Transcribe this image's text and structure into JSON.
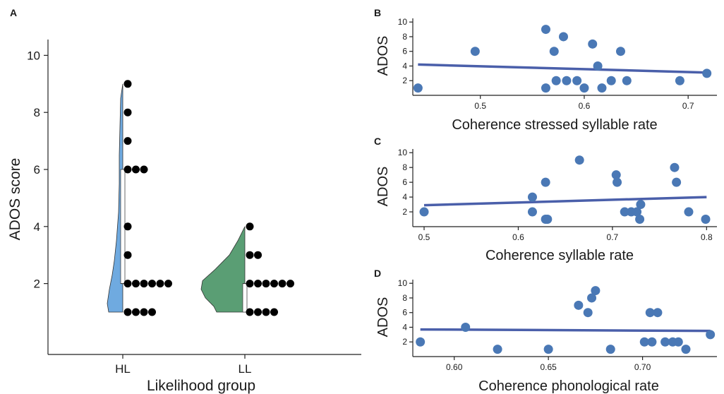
{
  "chart_data": [
    {
      "panel": "A",
      "type": "raincloud",
      "xlabel": "Likelihood group",
      "ylabel": "ADOS score",
      "categories": [
        "HL",
        "LL"
      ],
      "yticks": [
        2,
        4,
        6,
        8,
        10
      ],
      "ylim": [
        -0.5,
        10.5
      ],
      "groups": [
        {
          "name": "HL",
          "color": "#6faae0",
          "min": 1,
          "q1": 2,
          "median": 2,
          "q3": 6,
          "max": 9,
          "values": [
            9,
            8,
            7,
            6,
            6,
            6,
            4,
            3,
            2,
            2,
            2,
            2,
            2,
            2,
            1,
            1,
            1,
            1
          ]
        },
        {
          "name": "LL",
          "color": "#5a9e74",
          "min": 1,
          "q1": 1,
          "median": 2,
          "q3": 2,
          "max": 4,
          "values": [
            4,
            3,
            3,
            2,
            2,
            2,
            2,
            2,
            2,
            1,
            1,
            1,
            1
          ]
        }
      ]
    },
    {
      "panel": "B",
      "type": "scatter",
      "xlabel": "Coherence stressed syllable rate",
      "ylabel": "ADOS",
      "xlim": [
        0.435,
        0.725
      ],
      "ylim": [
        0,
        10.5
      ],
      "xticks": [
        "0.5",
        "0.6",
        "0.7"
      ],
      "yticks": [
        2,
        4,
        6,
        8,
        10
      ],
      "fit": {
        "x": [
          0.44,
          0.72
        ],
        "y": [
          4.2,
          3.1
        ]
      },
      "points": [
        [
          0.44,
          1
        ],
        [
          0.495,
          6
        ],
        [
          0.563,
          9
        ],
        [
          0.563,
          1
        ],
        [
          0.571,
          6
        ],
        [
          0.573,
          2
        ],
        [
          0.58,
          8
        ],
        [
          0.583,
          2
        ],
        [
          0.593,
          2
        ],
        [
          0.6,
          1
        ],
        [
          0.608,
          7
        ],
        [
          0.613,
          4
        ],
        [
          0.617,
          1
        ],
        [
          0.626,
          2
        ],
        [
          0.635,
          6
        ],
        [
          0.641,
          2
        ],
        [
          0.692,
          2
        ],
        [
          0.718,
          3
        ]
      ]
    },
    {
      "panel": "C",
      "type": "scatter",
      "xlabel": "Coherence syllable rate",
      "ylabel": "ADOS",
      "xlim": [
        0.488,
        0.808
      ],
      "ylim": [
        0,
        10.5
      ],
      "xticks": [
        "0.5",
        "0.6",
        "0.7",
        "0.8"
      ],
      "yticks": [
        2,
        4,
        6,
        8,
        10
      ],
      "fit": {
        "x": [
          0.5,
          0.8
        ],
        "y": [
          2.9,
          4.0
        ]
      },
      "points": [
        [
          0.5,
          2
        ],
        [
          0.615,
          4
        ],
        [
          0.615,
          2
        ],
        [
          0.629,
          6
        ],
        [
          0.629,
          1
        ],
        [
          0.631,
          1
        ],
        [
          0.665,
          9
        ],
        [
          0.704,
          7
        ],
        [
          0.705,
          6
        ],
        [
          0.713,
          2
        ],
        [
          0.72,
          2
        ],
        [
          0.726,
          2
        ],
        [
          0.729,
          1
        ],
        [
          0.73,
          3
        ],
        [
          0.766,
          8
        ],
        [
          0.768,
          6
        ],
        [
          0.781,
          2
        ],
        [
          0.799,
          1
        ]
      ]
    },
    {
      "panel": "D",
      "type": "scatter",
      "xlabel": "Coherence phonological rate",
      "ylabel": "ADOS",
      "xlim": [
        0.578,
        0.738
      ],
      "ylim": [
        0,
        10.5
      ],
      "xticks": [
        "0.60",
        "0.65",
        "0.70"
      ],
      "yticks": [
        2,
        4,
        6,
        8,
        10
      ],
      "fit": {
        "x": [
          0.582,
          0.736
        ],
        "y": [
          3.7,
          3.5
        ]
      },
      "points": [
        [
          0.582,
          2
        ],
        [
          0.606,
          4
        ],
        [
          0.623,
          1
        ],
        [
          0.65,
          1
        ],
        [
          0.666,
          7
        ],
        [
          0.671,
          6
        ],
        [
          0.673,
          8
        ],
        [
          0.675,
          9
        ],
        [
          0.683,
          1
        ],
        [
          0.701,
          2
        ],
        [
          0.704,
          6
        ],
        [
          0.705,
          2
        ],
        [
          0.708,
          6
        ],
        [
          0.712,
          2
        ],
        [
          0.716,
          2
        ],
        [
          0.719,
          2
        ],
        [
          0.723,
          1
        ],
        [
          0.736,
          3
        ]
      ]
    }
  ],
  "colors": {
    "scatter_point": "#4a78b5",
    "fit_line": "#4a5faa",
    "dot": "#000000",
    "hl_fill": "#6faae0",
    "ll_fill": "#5a9e74"
  }
}
